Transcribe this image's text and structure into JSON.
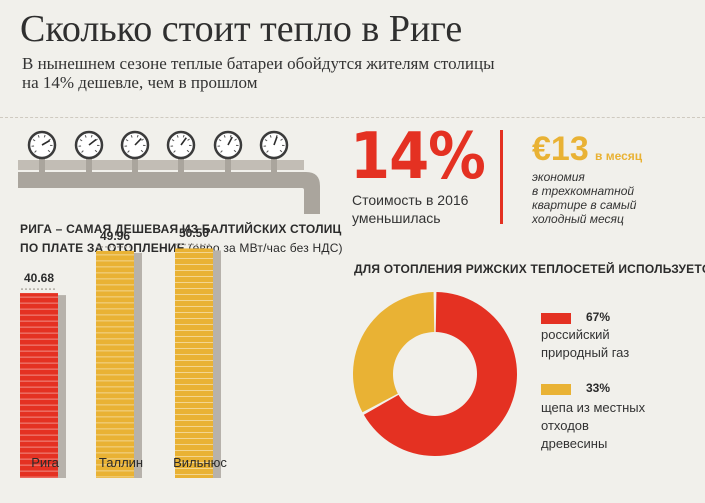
{
  "header": {
    "title": "Сколько стоит тепло в Риге",
    "subtitle_line1": "В нынешнем сезоне теплые батареи обойдутся жителям столицы",
    "subtitle_line2": "на 14% дешевле, чем в прошлом"
  },
  "stats": {
    "percent": "14%",
    "percent_text_line1": "Стоимость в 2016",
    "percent_text_line2": "уменьшилась",
    "saving_amount": "€13",
    "saving_unit": "в месяц",
    "saving_note_line1": "экономия",
    "saving_note_line2": "в трехкомнатной",
    "saving_note_line3": "квартире в самый",
    "saving_note_line4": "холодный месяц"
  },
  "colors": {
    "red": "#e43122",
    "yellow": "#e9b234",
    "gray": "#b7b2ab"
  },
  "chart_data": [
    {
      "type": "bar",
      "title": "РИГА – САМАЯ ДЕШЕВАЯ ИЗ БАЛТИЙСКИХ СТОЛИЦ",
      "subtitle_prefix": "ПО ПЛАТЕ ЗА ОТОПЛЕНИЕ",
      "subtitle_units": "(евро за МВт/час без НДС)",
      "categories": [
        "Рига",
        "Таллин",
        "Вильнюс"
      ],
      "values": [
        40.68,
        49.96,
        50.5
      ],
      "value_labels": [
        "40.68",
        "49.96",
        "50.50"
      ],
      "colors": [
        "#e43122",
        "#e9b234",
        "#e9b234"
      ],
      "ylim": [
        0,
        55
      ]
    },
    {
      "type": "pie",
      "title": "ДЛЯ ОТОПЛЕНИЯ РИЖСКИХ ТЕПЛОСЕТЕЙ ИСПОЛЬЗУЕТСЯ",
      "slices": [
        {
          "label_line1": "российский",
          "label_line2": "природный газ",
          "label_line3": "",
          "value": 67,
          "value_label": "67%",
          "color": "#e43122"
        },
        {
          "label_line1": "щепа из местных",
          "label_line2": "отходов",
          "label_line3": "древесины",
          "value": 33,
          "value_label": "33%",
          "color": "#e9b234"
        }
      ]
    }
  ]
}
